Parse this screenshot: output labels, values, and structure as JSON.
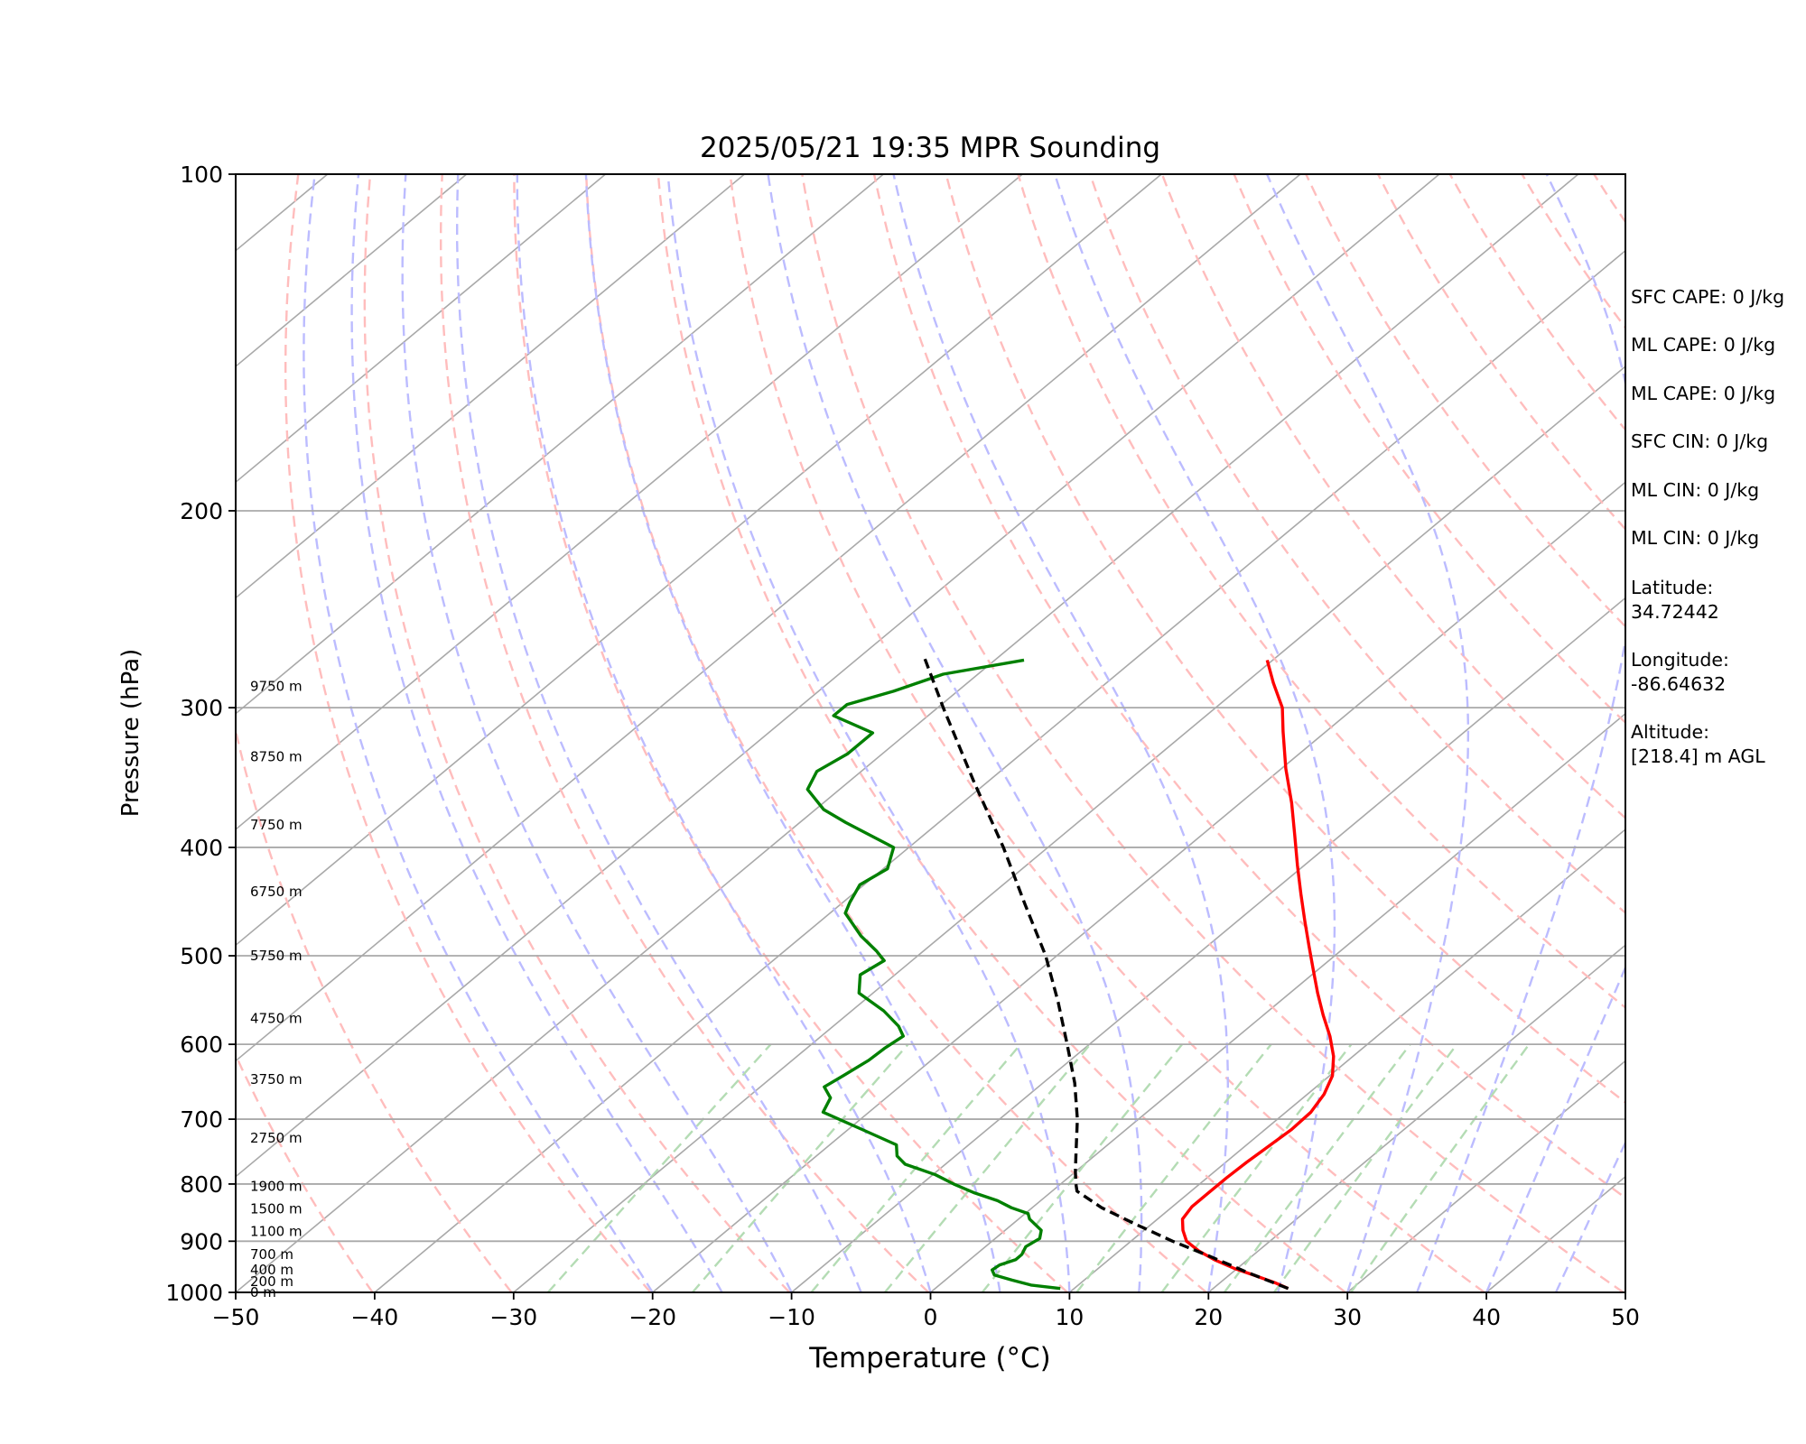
{
  "chart_data": {
    "type": "line",
    "subtype": "skew-T log-P",
    "title": "2025/05/21 19:35 MPR Sounding",
    "xlabel": "Temperature (°C)",
    "ylabel": "Pressure (hPa)",
    "xlim": [
      -50,
      50
    ],
    "ylim": [
      1000,
      100
    ],
    "yscale": "log",
    "x_ticks": [
      -50,
      -40,
      -30,
      -20,
      -10,
      0,
      10,
      20,
      30,
      40,
      50
    ],
    "x_tick_labels": [
      "−50",
      "−40",
      "−30",
      "−20",
      "−10",
      "0",
      "10",
      "20",
      "30",
      "40",
      "50"
    ],
    "y_ticks": [
      1000,
      900,
      800,
      700,
      600,
      500,
      400,
      300,
      200,
      100
    ],
    "y_tick_labels": [
      "1000",
      "900",
      "800",
      "700",
      "600",
      "500",
      "400",
      "300",
      "200",
      "100"
    ],
    "grid": true,
    "background_lines": {
      "isotherms": "gray solid",
      "dry_adiabats": "red dashed",
      "moist_adiabats": "blue dashed",
      "mixing_ratio": "green dashed, 1000–600 hPa"
    },
    "height_labels": [
      {
        "text": "0 m",
        "p": 1000
      },
      {
        "text": "200 m",
        "p": 978
      },
      {
        "text": "400 m",
        "p": 955
      },
      {
        "text": "700 m",
        "p": 925
      },
      {
        "text": "1100 m",
        "p": 882
      },
      {
        "text": "1500 m",
        "p": 842
      },
      {
        "text": "1900 m",
        "p": 804
      },
      {
        "text": "2750 m",
        "p": 728
      },
      {
        "text": "3750 m",
        "p": 645
      },
      {
        "text": "4750 m",
        "p": 569
      },
      {
        "text": "5750 m",
        "p": 500
      },
      {
        "text": "6750 m",
        "p": 438
      },
      {
        "text": "7750 m",
        "p": 382
      },
      {
        "text": "8750 m",
        "p": 332
      },
      {
        "text": "9750 m",
        "p": 287
      }
    ],
    "series": [
      {
        "role": "temperature",
        "color": "#ff0000",
        "style": "solid",
        "points": [
          [
            992,
            25.4
          ],
          [
            980,
            23.9
          ],
          [
            966,
            21.9
          ],
          [
            952,
            19.8
          ],
          [
            935,
            17.6
          ],
          [
            918,
            15.7
          ],
          [
            900,
            14.0
          ],
          [
            880,
            12.8
          ],
          [
            860,
            11.8
          ],
          [
            838,
            11.4
          ],
          [
            815,
            11.4
          ],
          [
            790,
            11.4
          ],
          [
            765,
            11.5
          ],
          [
            740,
            11.7
          ],
          [
            715,
            11.9
          ],
          [
            690,
            11.8
          ],
          [
            665,
            11.2
          ],
          [
            640,
            10.2
          ],
          [
            615,
            8.6
          ],
          [
            590,
            6.6
          ],
          [
            565,
            4.3
          ],
          [
            540,
            2.0
          ],
          [
            515,
            -0.3
          ],
          [
            490,
            -2.7
          ],
          [
            465,
            -5.2
          ],
          [
            440,
            -7.8
          ],
          [
            415,
            -10.5
          ],
          [
            390,
            -13.3
          ],
          [
            365,
            -16.3
          ],
          [
            340,
            -19.7
          ],
          [
            315,
            -23.1
          ],
          [
            300,
            -25.2
          ],
          [
            285,
            -28.0
          ],
          [
            272,
            -30.4
          ]
        ]
      },
      {
        "role": "dewpoint",
        "color": "#008000",
        "style": "solid",
        "points": [
          [
            992,
            9.0
          ],
          [
            985,
            6.6
          ],
          [
            975,
            4.8
          ],
          [
            965,
            3.1
          ],
          [
            955,
            2.5
          ],
          [
            945,
            2.6
          ],
          [
            935,
            3.3
          ],
          [
            925,
            3.3
          ],
          [
            910,
            2.9
          ],
          [
            895,
            3.2
          ],
          [
            880,
            2.6
          ],
          [
            860,
            0.8
          ],
          [
            850,
            0.2
          ],
          [
            840,
            -1.5
          ],
          [
            828,
            -3.1
          ],
          [
            815,
            -5.4
          ],
          [
            800,
            -7.7
          ],
          [
            785,
            -9.8
          ],
          [
            768,
            -12.9
          ],
          [
            755,
            -14.2
          ],
          [
            738,
            -15.2
          ],
          [
            715,
            -19.0
          ],
          [
            690,
            -23.3
          ],
          [
            670,
            -24.0
          ],
          [
            655,
            -25.4
          ],
          [
            640,
            -25.0
          ],
          [
            620,
            -24.5
          ],
          [
            605,
            -24.4
          ],
          [
            590,
            -24.1
          ],
          [
            578,
            -25.3
          ],
          [
            560,
            -27.7
          ],
          [
            540,
            -31.0
          ],
          [
            520,
            -32.5
          ],
          [
            505,
            -32.0
          ],
          [
            495,
            -33.4
          ],
          [
            480,
            -35.8
          ],
          [
            458,
            -38.9
          ],
          [
            448,
            -39.5
          ],
          [
            432,
            -40.3
          ],
          [
            418,
            -39.7
          ],
          [
            400,
            -41.1
          ],
          [
            380,
            -46.7
          ],
          [
            370,
            -49.4
          ],
          [
            355,
            -52.3
          ],
          [
            342,
            -53.2
          ],
          [
            330,
            -52.5
          ],
          [
            316,
            -52.5
          ],
          [
            305,
            -56.8
          ],
          [
            298,
            -56.8
          ],
          [
            290,
            -54.6
          ],
          [
            280,
            -52.5
          ],
          [
            272,
            -47.9
          ]
        ]
      },
      {
        "role": "parcel",
        "color": "#000000",
        "style": "dashed",
        "points": [
          [
            992,
            25.4
          ],
          [
            960,
            21.1
          ],
          [
            930,
            17.2
          ],
          [
            900,
            13.0
          ],
          [
            870,
            9.0
          ],
          [
            840,
            5.0
          ],
          [
            812,
            1.8
          ],
          [
            800,
            1.1
          ],
          [
            780,
            0.0
          ],
          [
            750,
            -1.6
          ],
          [
            700,
            -4.4
          ],
          [
            650,
            -7.7
          ],
          [
            600,
            -11.6
          ],
          [
            550,
            -15.9
          ],
          [
            500,
            -20.8
          ],
          [
            450,
            -26.7
          ],
          [
            400,
            -33.2
          ],
          [
            350,
            -40.9
          ],
          [
            300,
            -49.6
          ],
          [
            270,
            -55.4
          ]
        ]
      }
    ]
  },
  "side_panel": {
    "items": [
      "SFC CAPE: 0 J/kg",
      "ML CAPE: 0 J/kg",
      "ML CAPE: 0 J/kg",
      "SFC CIN: 0 J/kg",
      "ML CIN: 0 J/kg",
      "ML CIN: 0 J/kg"
    ],
    "latitude_label": "Latitude:",
    "latitude_value": "34.72442",
    "longitude_label": "Longitude:",
    "longitude_value": "-86.64632",
    "altitude_label": "Altitude:",
    "altitude_value": "[218.4] m AGL"
  },
  "colors": {
    "isotherm": "#a9a9a9",
    "dry_adiabat": "#ffbdbd",
    "moist_adiabat": "#bcbcff",
    "mixing_ratio": "#b4dcb4",
    "pressure_grid": "#a9a9a9"
  }
}
